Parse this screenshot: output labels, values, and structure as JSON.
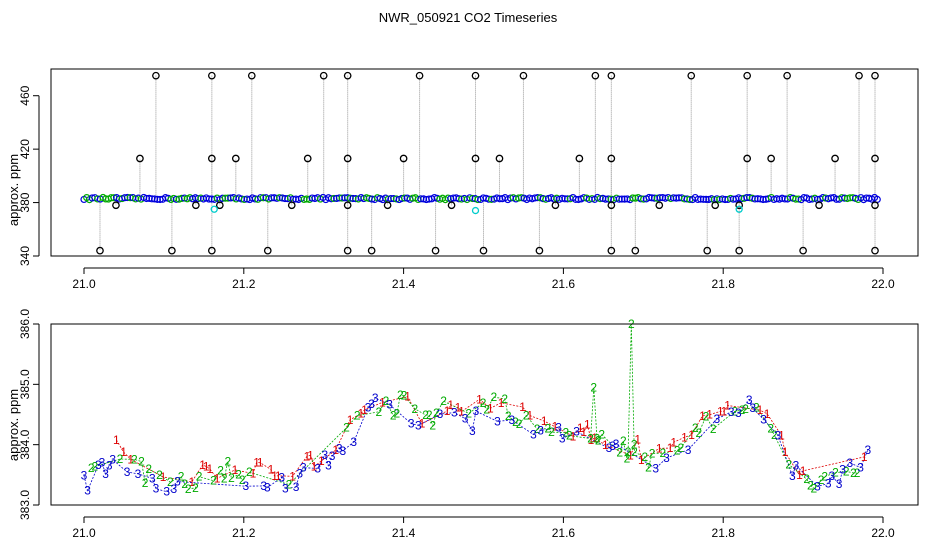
{
  "figure_title": "NWR_050921  CO2 Timeseries",
  "chart_data": [
    {
      "type": "scatter",
      "ylabel": "approx. ppm",
      "xlim": [
        21.0,
        22.0
      ],
      "ylim": [
        340,
        480
      ],
      "x_ticks": [
        21.0,
        21.2,
        21.4,
        21.6,
        21.8,
        22.0
      ],
      "x_tick_labels": [
        "21.0",
        "21.2",
        "21.4",
        "21.6",
        "21.8",
        "22.0"
      ],
      "y_ticks": [
        340,
        380,
        420,
        460
      ],
      "y_tick_labels": [
        "340",
        "380",
        "420",
        "460"
      ],
      "grid": false,
      "colors": {
        "baseline": "#0000dd",
        "baseline_alt": "#00aa00",
        "outlier": "#000000",
        "cyan": "#00cccc",
        "spike_line": "#999999"
      },
      "baseline_level": 383,
      "outliers_high": [
        21.09,
        21.16,
        21.21,
        21.3,
        21.33,
        21.42,
        21.49,
        21.55,
        21.64,
        21.66,
        21.76,
        21.83,
        21.88,
        21.97,
        21.99
      ],
      "outliers_mid": [
        21.07,
        21.16,
        21.19,
        21.28,
        21.33,
        21.4,
        21.49,
        21.52,
        21.62,
        21.66,
        21.83,
        21.86,
        21.94,
        21.99
      ],
      "outliers_low": [
        21.02,
        21.11,
        21.16,
        21.23,
        21.33,
        21.36,
        21.44,
        21.5,
        21.57,
        21.66,
        21.69,
        21.78,
        21.82,
        21.9,
        21.99
      ],
      "outliers_slight_low": [
        21.04,
        21.14,
        21.17,
        21.26,
        21.33,
        21.38,
        21.46,
        21.59,
        21.66,
        21.72,
        21.79,
        21.82,
        21.92,
        21.99
      ],
      "cyan_points": [
        [
          21.163,
          375
        ],
        [
          21.49,
          374
        ],
        [
          21.82,
          375
        ]
      ]
    },
    {
      "type": "scatter",
      "ylabel": "approx. ppm",
      "xlim": [
        21.0,
        22.0
      ],
      "ylim": [
        383.0,
        386.0
      ],
      "x_ticks": [
        21.0,
        21.2,
        21.4,
        21.6,
        21.8,
        22.0
      ],
      "x_tick_labels": [
        "21.0",
        "21.2",
        "21.4",
        "21.6",
        "21.8",
        "22.0"
      ],
      "y_ticks": [
        383.0,
        384.0,
        385.0,
        386.0
      ],
      "y_tick_labels": [
        "383.0",
        "384.0",
        "385.0",
        "386.0"
      ],
      "grid": false,
      "series": [
        {
          "label": "1",
          "color": "#dd0000"
        },
        {
          "label": "2",
          "color": "#00aa00"
        },
        {
          "label": "3",
          "color": "#0000cc"
        }
      ],
      "trend": {
        "x": [
          21.0,
          21.02,
          21.04,
          21.06,
          21.08,
          21.1,
          21.12,
          21.14,
          21.16,
          21.18,
          21.2,
          21.22,
          21.24,
          21.26,
          21.28,
          21.3,
          21.32,
          21.34,
          21.36,
          21.38,
          21.4,
          21.42,
          21.44,
          21.46,
          21.48,
          21.5,
          21.52,
          21.54,
          21.56,
          21.58,
          21.6,
          21.62,
          21.64,
          21.66,
          21.68,
          21.7,
          21.72,
          21.74,
          21.76,
          21.78,
          21.8,
          21.82,
          21.84,
          21.86,
          21.88,
          21.9,
          21.92,
          21.94,
          21.96,
          21.98
        ],
        "y": [
          383.4,
          383.6,
          383.9,
          383.6,
          383.5,
          383.4,
          383.3,
          383.4,
          383.5,
          383.6,
          383.5,
          383.5,
          383.4,
          383.5,
          383.6,
          383.8,
          384.0,
          384.3,
          384.7,
          384.6,
          384.7,
          384.3,
          384.5,
          384.6,
          384.4,
          384.6,
          384.6,
          384.5,
          384.4,
          384.3,
          384.2,
          384.1,
          384.1,
          384.0,
          383.9,
          383.8,
          383.7,
          383.9,
          384.1,
          384.3,
          384.5,
          384.6,
          384.8,
          384.3,
          383.8,
          383.5,
          383.4,
          383.4,
          383.6,
          383.8
        ]
      },
      "green_spikes": [
        [
          21.638,
          384.95
        ],
        [
          21.685,
          386.0
        ]
      ]
    }
  ]
}
